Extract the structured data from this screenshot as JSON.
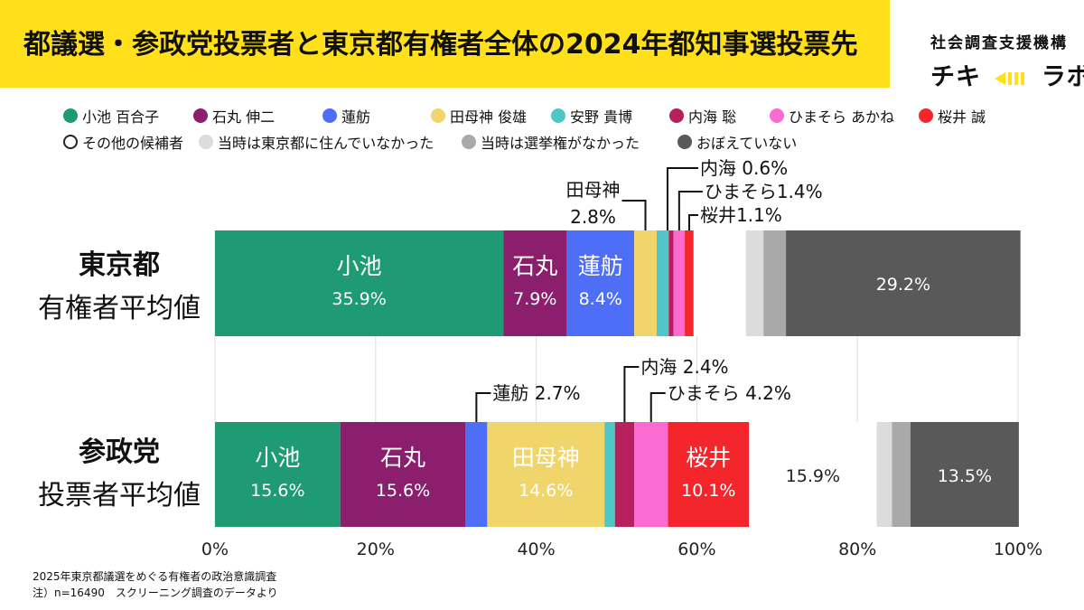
{
  "title": "都議選・参政党投票者と東京都有権者全体の2024年都知事選投票先",
  "brand": {
    "small": "社会調査支援機構",
    "main_left": "チキ",
    "main_right": "ラボ"
  },
  "notes": [
    "2025年東京都議選をめぐる有権者の政治意識調査",
    "注）n=16490　スクリーニング調査のデータより"
  ],
  "row_labels": [
    {
      "strong": "東京都",
      "sub": "有権者平均値"
    },
    {
      "strong": "参政党",
      "sub": "投票者平均値"
    }
  ],
  "legend": [
    {
      "label": "小池 百合子",
      "color": "#1f9b74"
    },
    {
      "label": "石丸 伸二",
      "color": "#8b1f6e"
    },
    {
      "label": "蓮舫",
      "color": "#4f6ef7"
    },
    {
      "label": "田母神 俊雄",
      "color": "#efd56a"
    },
    {
      "label": "安野 貴博",
      "color": "#4fc7c7"
    },
    {
      "label": "内海 聡",
      "color": "#b81f5d"
    },
    {
      "label": "ひまそら あかね",
      "color": "#fb6bd1"
    },
    {
      "label": "桜井 誠",
      "color": "#f4262b"
    },
    {
      "label": "その他の候補者",
      "color": "#ffffff"
    },
    {
      "label": "当時は東京都に住んでいなかった",
      "color": "#dcdcdc"
    },
    {
      "label": "当時は選挙権がなかった",
      "color": "#a9a9a9"
    },
    {
      "label": "おぼえていない",
      "color": "#595959"
    }
  ],
  "chart_data": {
    "type": "bar",
    "orientation": "horizontal",
    "stacked": true,
    "title": "都議選・参政党投票者と東京都有権者全体の2024年都知事選投票先",
    "categories": [
      "東京都 有権者平均値",
      "参政党 投票者平均値"
    ],
    "xlim": [
      0,
      100
    ],
    "xticks": [
      "0%",
      "20%",
      "40%",
      "60%",
      "80%",
      "100%"
    ],
    "grid": true,
    "legend_position": "top",
    "series": [
      {
        "name": "小池 百合子",
        "values": [
          35.9,
          15.6
        ]
      },
      {
        "name": "石丸 伸二",
        "values": [
          7.9,
          15.6
        ]
      },
      {
        "name": "蓮舫",
        "values": [
          8.4,
          2.7
        ]
      },
      {
        "name": "田母神 俊雄",
        "values": [
          2.8,
          14.6
        ]
      },
      {
        "name": "安野 貴博",
        "values": [
          1.5,
          1.3
        ]
      },
      {
        "name": "内海 聡",
        "values": [
          0.6,
          2.4
        ]
      },
      {
        "name": "ひまそら あかね",
        "values": [
          1.4,
          4.2
        ]
      },
      {
        "name": "桜井 誠",
        "values": [
          1.1,
          10.1
        ]
      },
      {
        "name": "その他の候補者",
        "values": [
          6.5,
          15.9
        ]
      },
      {
        "name": "当時は東京都に住んでいなかった",
        "values": [
          2.2,
          1.9
        ]
      },
      {
        "name": "当時は選挙権がなかった",
        "values": [
          2.8,
          2.3
        ]
      },
      {
        "name": "おぼえていない",
        "values": [
          29.2,
          13.5
        ]
      }
    ],
    "inside_labels": [
      [
        {
          "series": 0,
          "name": "小池",
          "value": "35.9%"
        },
        {
          "series": 1,
          "name": "石丸",
          "value": "7.9%"
        },
        {
          "series": 2,
          "name": "蓮舫",
          "value": "8.4%"
        },
        {
          "series": 11,
          "name": "",
          "value": "29.2%"
        }
      ],
      [
        {
          "series": 0,
          "name": "小池",
          "value": "15.6%"
        },
        {
          "series": 1,
          "name": "石丸",
          "value": "15.6%"
        },
        {
          "series": 3,
          "name": "田母神",
          "value": "14.6%"
        },
        {
          "series": 7,
          "name": "桜井",
          "value": "10.1%"
        },
        {
          "series": 8,
          "name": "",
          "value": "15.9%",
          "dark": true
        },
        {
          "series": 11,
          "name": "",
          "value": "13.5%"
        }
      ]
    ],
    "callouts": [
      {
        "row": 0,
        "series": 3,
        "text": "田母神",
        "text2": "2.8%"
      },
      {
        "row": 0,
        "series": 5,
        "text": "内海 0.6%"
      },
      {
        "row": 0,
        "series": 6,
        "text": "ひまそら1.4%"
      },
      {
        "row": 0,
        "series": 7,
        "text": "桜井1.1%"
      },
      {
        "row": 1,
        "series": 2,
        "text": "蓮舫 2.7%"
      },
      {
        "row": 1,
        "series": 5,
        "text": "内海 2.4%"
      },
      {
        "row": 1,
        "series": 6,
        "text": "ひまそら 4.2%"
      }
    ]
  }
}
